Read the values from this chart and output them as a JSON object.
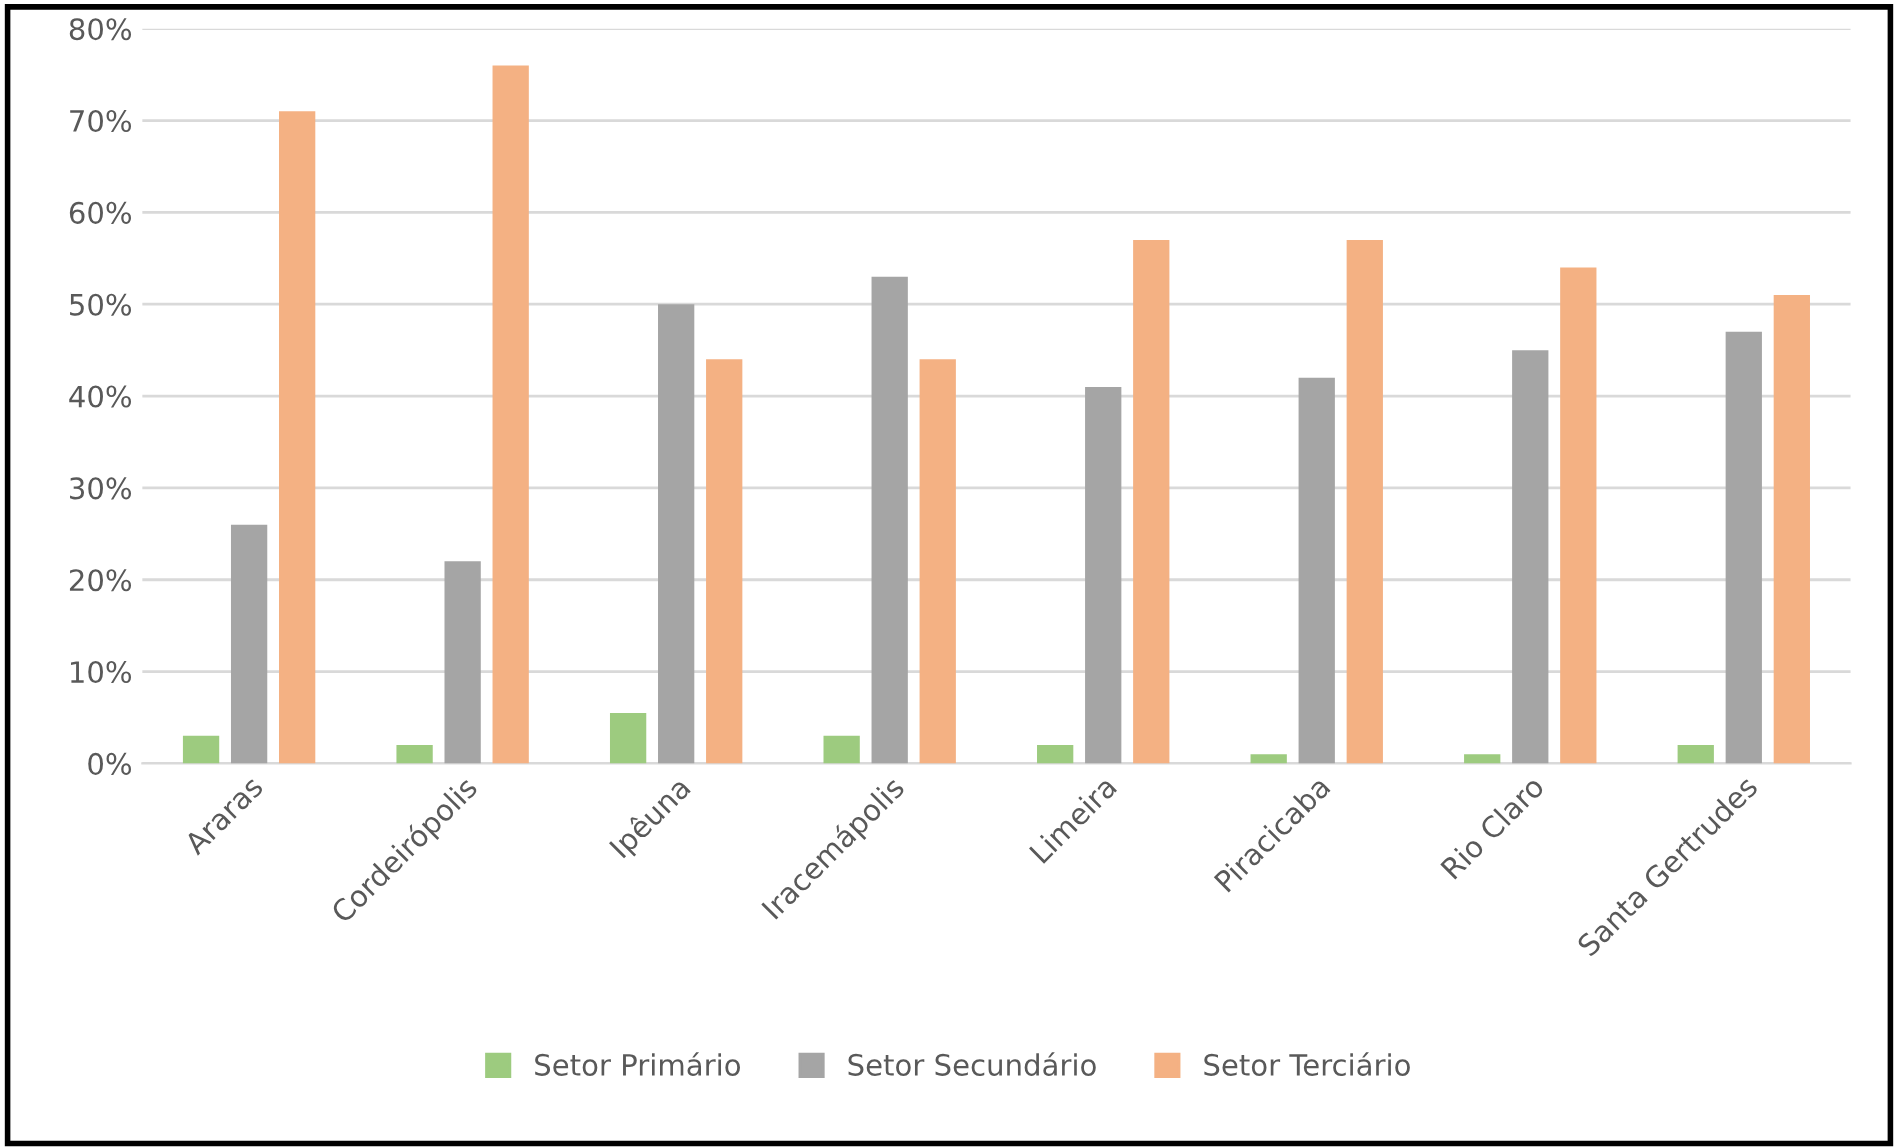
{
  "chart_data": {
    "type": "bar",
    "categories": [
      "Araras",
      "Cordeirópolis",
      "Ipêuna",
      "Iracemápolis",
      "Limeira",
      "Piracicaba",
      "Rio Claro",
      "Santa Gertrudes"
    ],
    "series": [
      {
        "name": "Setor Primário",
        "color": "#9dcb7f",
        "values": [
          3,
          2,
          5.5,
          3,
          2,
          1,
          1,
          2
        ]
      },
      {
        "name": "Setor Secundário",
        "color": "#a5a5a5",
        "values": [
          26,
          22,
          50,
          53,
          41,
          42,
          45,
          47
        ]
      },
      {
        "name": "Setor Terciário",
        "color": "#f4b183",
        "values": [
          71,
          76,
          44,
          44,
          57,
          57,
          54,
          51
        ]
      }
    ],
    "ylim": [
      0,
      80
    ],
    "yticks": [
      {
        "value": 0,
        "label": "0%"
      },
      {
        "value": 10,
        "label": "10%"
      },
      {
        "value": 20,
        "label": "20%"
      },
      {
        "value": 30,
        "label": "30%"
      },
      {
        "value": 40,
        "label": "40%"
      },
      {
        "value": 50,
        "label": "50%"
      },
      {
        "value": 60,
        "label": "60%"
      },
      {
        "value": 70,
        "label": "70%"
      },
      {
        "value": 80,
        "label": "80%"
      }
    ],
    "grid": "y",
    "legend": "bottom"
  }
}
